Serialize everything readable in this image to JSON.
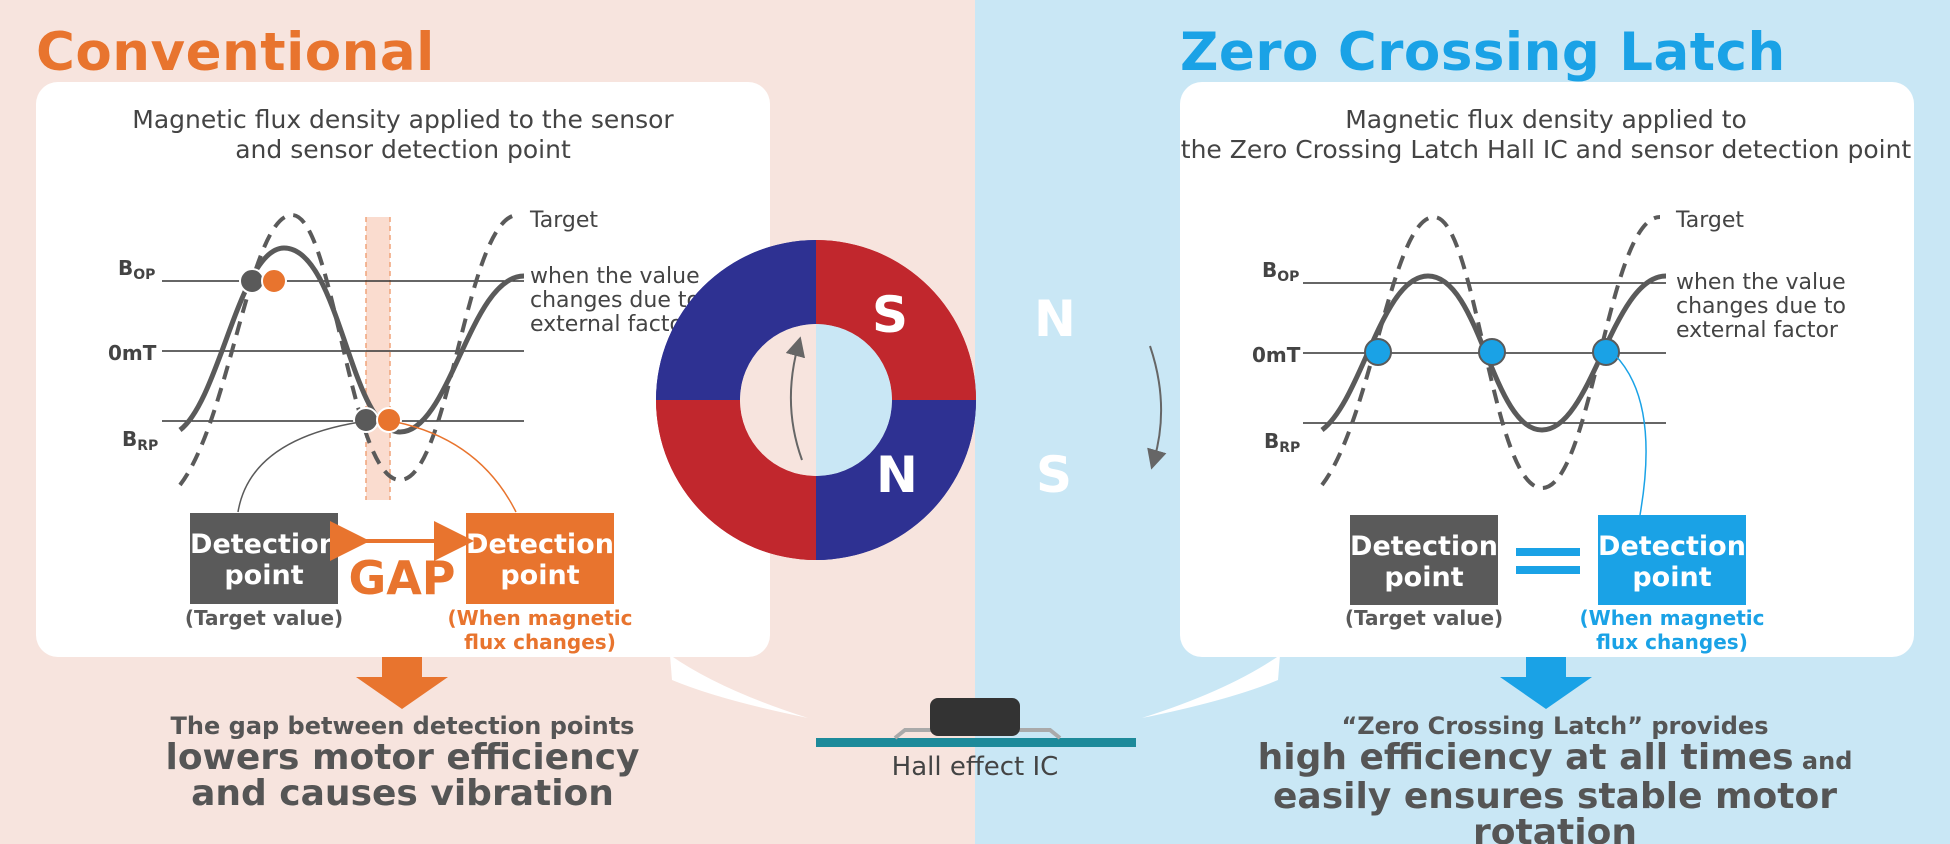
{
  "conventional": {
    "title": "Conventional",
    "panel_heading_1": "Magnetic flux density applied to the sensor",
    "panel_heading_2": "and sensor detection point",
    "label_bop": "B",
    "label_bop_sub": "OP",
    "label_0mt": "0mT",
    "label_brp": "B",
    "label_brp_sub": "RP",
    "legend_target": "Target",
    "legend_external_1": "when the value",
    "legend_external_2": "changes due to",
    "legend_external_3": "external factor",
    "box_left_1": "Detection",
    "box_left_2": "point",
    "box_left_caption": "(Target value)",
    "gap_label": "GAP",
    "box_right_1": "Detection",
    "box_right_2": "point",
    "box_right_caption_1": "(When magnetic",
    "box_right_caption_2": "flux changes)",
    "bottom_small": "The gap between detection points",
    "bottom_big_1": "lowers motor efficiency",
    "bottom_big_2": "and causes vibration"
  },
  "zero_crossing": {
    "title": "Zero Crossing Latch",
    "panel_heading_1": "Magnetic flux density applied to",
    "panel_heading_2": "the Zero Crossing Latch Hall IC and sensor detection point",
    "label_bop": "B",
    "label_bop_sub": "OP",
    "label_0mt": "0mT",
    "label_brp": "B",
    "label_brp_sub": "RP",
    "legend_target": "Target",
    "legend_external_1": "when the value",
    "legend_external_2": "changes due to",
    "legend_external_3": "external factor",
    "box_left_1": "Detection",
    "box_left_2": "point",
    "box_left_caption": "(Target value)",
    "box_right_1": "Detection",
    "box_right_2": "point",
    "box_right_caption_1": "(When magnetic",
    "box_right_caption_2": "flux changes)",
    "bottom_small": "“Zero Crossing Latch” provides",
    "bottom_big_1": "high efficiency at all times",
    "bottom_and": " and",
    "bottom_big_2": "easily ensures stable motor rotation"
  },
  "magnet": {
    "top_left": "S",
    "top_right": "N",
    "bottom_left": "N",
    "bottom_right": "S",
    "color_south": "#2e3192",
    "color_north": "#c1272d"
  },
  "hall_ic_label": "Hall effect IC",
  "colors": {
    "orange": "#e8742e",
    "blue": "#1aa2e6",
    "gray": "#5a5a5a"
  }
}
